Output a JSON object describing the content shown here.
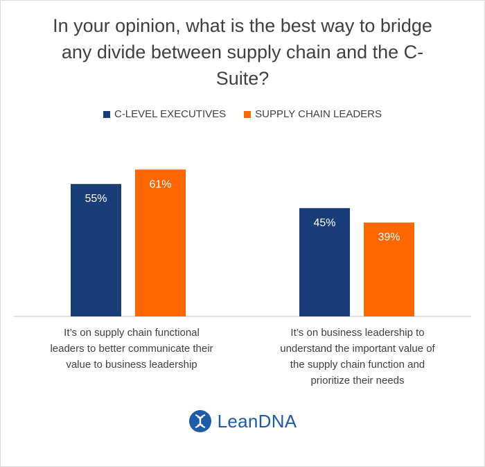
{
  "chart_data": {
    "type": "bar",
    "title": "In your opinion, what is the best way to bridge any divide between supply chain and the C-Suite?",
    "categories": [
      "It’s on supply chain functional leaders to better communicate their value to business leadership",
      "It’s on business leadership to understand the important value of the supply chain function and prioritize their needs"
    ],
    "series": [
      {
        "name": "C-LEVEL EXECUTIVES",
        "values": [
          55,
          45
        ],
        "labels": [
          "55%",
          "45%"
        ],
        "color": "#183d78"
      },
      {
        "name": "SUPPLY CHAIN LEADERS",
        "values": [
          61,
          39
        ],
        "labels": [
          "61%",
          "39%"
        ],
        "color": "#ff6600"
      }
    ],
    "ylim": [
      0,
      100
    ],
    "grid": false,
    "legend_position": "top-center",
    "unit": "%"
  },
  "brand": {
    "logo_text": "LeanDNA",
    "logo_icon": "dna-helix-icon",
    "color": "#1e5aa8"
  }
}
